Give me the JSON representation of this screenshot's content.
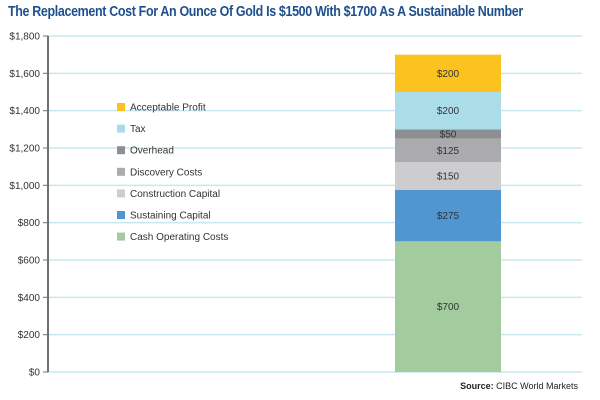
{
  "chart_data": {
    "type": "bar",
    "stacked": true,
    "title": "The Replacement Cost For An Ounce Of Gold Is $1500 With $1700 As A Sustainable Number",
    "xlabel": "",
    "ylabel": "",
    "ylim": [
      0,
      1800
    ],
    "y_ticks": [
      0,
      200,
      400,
      600,
      800,
      1000,
      1200,
      1400,
      1600,
      1800
    ],
    "y_tick_labels": [
      "$0",
      "$200",
      "$400",
      "$600",
      "$800",
      "$1,000",
      "$1,200",
      "$1,400",
      "$1,600",
      "$1,800"
    ],
    "grid": true,
    "legend_position": "left",
    "categories": [
      ""
    ],
    "series": [
      {
        "name": "Cash Operating Costs",
        "values": [
          700
        ],
        "label": "$700",
        "color": "#a3cc9e"
      },
      {
        "name": "Sustaining Capital",
        "values": [
          275
        ],
        "label": "$275",
        "color": "#5096d0"
      },
      {
        "name": "Construction Capital",
        "values": [
          150
        ],
        "label": "$150",
        "color": "#cdcdcf"
      },
      {
        "name": "Discovery Costs",
        "values": [
          125
        ],
        "label": "$125",
        "color": "#ababad"
      },
      {
        "name": "Overhead",
        "values": [
          50
        ],
        "label": "$50",
        "color": "#8e8f92"
      },
      {
        "name": "Tax",
        "values": [
          200
        ],
        "label": "$200",
        "color": "#abdde9"
      },
      {
        "name": "Acceptable Profit",
        "values": [
          200
        ],
        "label": "$200",
        "color": "#fcc21f"
      }
    ],
    "legend_order": [
      "Acceptable Profit",
      "Tax",
      "Overhead",
      "Discovery Costs",
      "Construction Capital",
      "Sustaining Capital",
      "Cash Operating Costs"
    ]
  },
  "colors": {
    "title": "#1d4f8c",
    "gridline": "#c6e8ee",
    "axis": "#707070"
  },
  "source": {
    "prefix": "Source:",
    "text": "CIBC World Markets"
  }
}
